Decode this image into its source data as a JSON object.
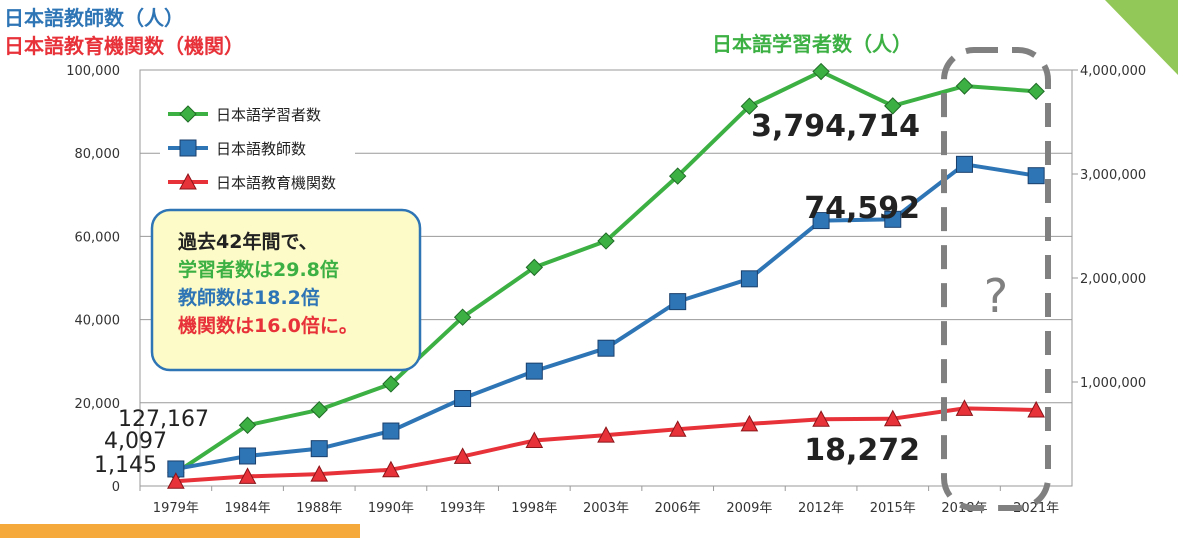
{
  "chart_data": {
    "type": "line",
    "title_left_1": "日本語教師数（人）",
    "title_left_2": "日本語教育機関数（機関）",
    "title_right": "日本語学習者数（人）",
    "categories": [
      "1979年",
      "1984年",
      "1988年",
      "1990年",
      "1993年",
      "1998年",
      "2003年",
      "2006年",
      "2009年",
      "2012年",
      "2015年",
      "2018年",
      "2021年"
    ],
    "left_axis": {
      "min": 0,
      "max": 100000,
      "ticks": [
        "0",
        "20,000",
        "40,000",
        "60,000",
        "80,000",
        "100,000"
      ]
    },
    "right_axis": {
      "min": 0,
      "max": 4000000,
      "ticks": [
        "1,000,000",
        "2,000,000",
        "3,000,000",
        "4,000,000"
      ]
    },
    "series": [
      {
        "name": "日本語学習者数",
        "axis": "right",
        "color": "#3cb043",
        "marker": "diamond",
        "values": [
          127167,
          584000,
          733000,
          981000,
          1623000,
          2102000,
          2356000,
          2980000,
          3652000,
          3985000,
          3655000,
          3846000,
          3794714
        ]
      },
      {
        "name": "日本語教師数",
        "axis": "left",
        "color": "#2e75b6",
        "marker": "square",
        "values": [
          4097,
          7217,
          8977,
          13214,
          21034,
          27611,
          33124,
          44321,
          49803,
          63805,
          64108,
          77323,
          74592
        ]
      },
      {
        "name": "日本語教育機関数",
        "axis": "left",
        "color": "#e8323a",
        "marker": "triangle",
        "values": [
          1145,
          2305,
          2863,
          3915,
          7114,
          10930,
          12222,
          13639,
          14925,
          16046,
          16179,
          18661,
          18272
        ]
      }
    ],
    "annotations": {
      "learners_start": "127,167",
      "teachers_start": "4,097",
      "institutions_start": "1,145",
      "learners_end": "3,794,714",
      "teachers_end": "74,592",
      "institutions_end": "18,272",
      "question": "?"
    },
    "callout": {
      "line1": "過去42年間で、",
      "line2": "学習者数は29.8倍",
      "line3": "教師数は18.2倍",
      "line4": "機関数は16.0倍に。"
    }
  }
}
